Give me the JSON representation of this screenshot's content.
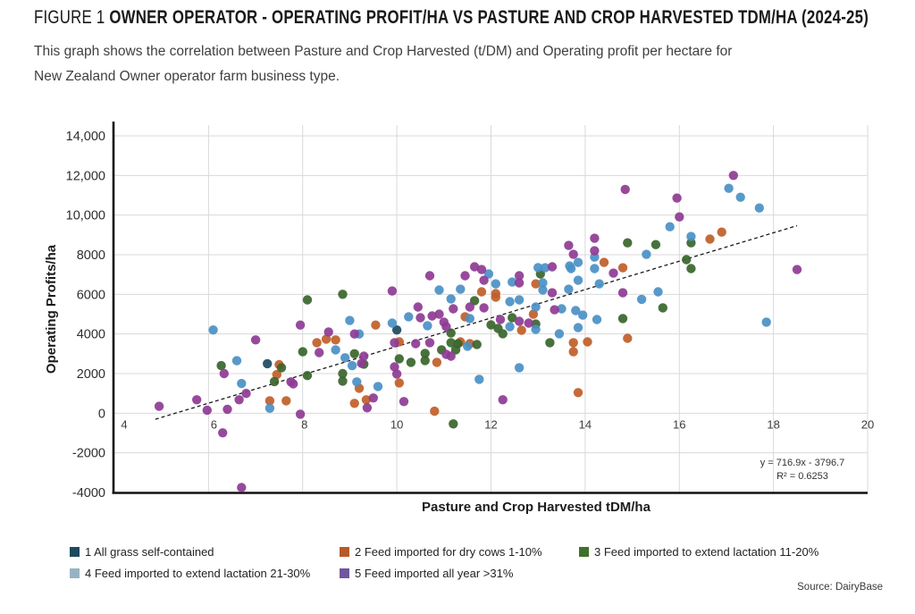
{
  "figure": {
    "title_prefix": "FIGURE 1 ",
    "title_main": "OWNER OPERATOR - OPERATING PROFIT/HA VS PASTURE AND CROP HARVESTED TDM/HA (2024-25)",
    "subtitle_line1": "This graph shows the correlation between Pasture and Crop Harvested (t/DM) and Operating profit per hectare for",
    "subtitle_line2": "New Zealand Owner operator farm business type.",
    "source": "Source: DairyBase"
  },
  "chart_data": {
    "type": "scatter",
    "title": "Owner Operator - Operating Profit/ha vs Pasture and Crop Harvested tDM/ha (2024-25)",
    "xlabel": "Pasture and Crop Harvested tDM/ha",
    "ylabel": "Operating Profits/ha",
    "xlim": [
      4,
      20
    ],
    "ylim": [
      -4000,
      14000
    ],
    "grid": true,
    "legend_position": "bottom",
    "x_ticks": [
      4,
      6,
      8,
      10,
      12,
      14,
      16,
      18,
      20
    ],
    "y_ticks": [
      -4000,
      -2000,
      0,
      2000,
      4000,
      6000,
      8000,
      10000,
      12000,
      14000
    ],
    "y_tick_labels": [
      "-4000",
      "-2000",
      "0",
      "2000",
      "4000",
      "6000",
      "8000",
      "10,000",
      "12,000",
      "14,000"
    ],
    "trendline": {
      "equation_label": "y = 716.9x - 3796.7",
      "r2_label": "R² = 0.6253",
      "slope": 716.9,
      "intercept": -3796.7,
      "x_start": 4.87,
      "x_end": 18.5,
      "style": "dashed",
      "color": "#1a1a1a"
    },
    "categories": [
      {
        "id": 1,
        "label": "1 All grass self-contained",
        "color": "#1d4a5e",
        "swatch_color": "#1d4a5e"
      },
      {
        "id": 2,
        "label": "2 Feed imported for dry cows 1-10%",
        "color": "#c05e28",
        "swatch_color": "#b65a28"
      },
      {
        "id": 3,
        "label": "3 Feed imported to extend lactation 11-20%",
        "color": "#38652b",
        "swatch_color": "#41702a"
      },
      {
        "id": 4,
        "label": "4 Feed imported to extend lactation 21-30%",
        "color": "#4a90c5",
        "swatch_color": "#97b3c3"
      },
      {
        "id": 5,
        "label": "5 Feed imported all year >31%",
        "color": "#8e3b94",
        "swatch_color": "#6f569f"
      }
    ],
    "points": [
      [
        7.25,
        2500,
        1
      ],
      [
        10.0,
        4200,
        1
      ],
      [
        7.3,
        630,
        2
      ],
      [
        7.45,
        1950,
        2
      ],
      [
        7.5,
        2450,
        2
      ],
      [
        7.65,
        630,
        2
      ],
      [
        8.3,
        3560,
        2
      ],
      [
        8.5,
        3740,
        2
      ],
      [
        8.7,
        3700,
        2
      ],
      [
        9.1,
        500,
        2
      ],
      [
        9.2,
        1260,
        2
      ],
      [
        9.35,
        680,
        2
      ],
      [
        9.55,
        4450,
        2
      ],
      [
        10.05,
        3600,
        2
      ],
      [
        10.05,
        1530,
        2
      ],
      [
        10.8,
        100,
        2
      ],
      [
        10.85,
        2570,
        2
      ],
      [
        11.35,
        3600,
        2
      ],
      [
        11.45,
        4870,
        2
      ],
      [
        11.55,
        3510,
        2
      ],
      [
        11.8,
        6130,
        2
      ],
      [
        12.1,
        5860,
        2
      ],
      [
        12.1,
        6040,
        2
      ],
      [
        12.65,
        4190,
        2
      ],
      [
        12.9,
        5000,
        2
      ],
      [
        12.95,
        6530,
        2
      ],
      [
        13.75,
        3560,
        2
      ],
      [
        13.75,
        3100,
        2
      ],
      [
        13.85,
        1040,
        2
      ],
      [
        14.05,
        3600,
        2
      ],
      [
        14.4,
        7610,
        2
      ],
      [
        14.8,
        7340,
        2
      ],
      [
        14.9,
        3780,
        2
      ],
      [
        16.65,
        8790,
        2
      ],
      [
        16.9,
        9140,
        2
      ],
      [
        6.27,
        2400,
        3
      ],
      [
        7.4,
        1600,
        3
      ],
      [
        7.55,
        2300,
        3
      ],
      [
        8.0,
        3100,
        3
      ],
      [
        8.1,
        1900,
        3
      ],
      [
        8.1,
        5720,
        3
      ],
      [
        8.85,
        2000,
        3
      ],
      [
        8.85,
        1620,
        3
      ],
      [
        8.85,
        6000,
        3
      ],
      [
        9.1,
        3000,
        3
      ],
      [
        9.3,
        2480,
        3
      ],
      [
        10.05,
        2750,
        3
      ],
      [
        10.3,
        2570,
        3
      ],
      [
        10.6,
        2660,
        3
      ],
      [
        10.6,
        3020,
        3
      ],
      [
        10.95,
        3200,
        3
      ],
      [
        11.15,
        4050,
        3
      ],
      [
        11.15,
        3560,
        3
      ],
      [
        11.2,
        -540,
        3
      ],
      [
        11.25,
        3200,
        3
      ],
      [
        11.3,
        3510,
        3
      ],
      [
        11.65,
        5680,
        3
      ],
      [
        11.7,
        3470,
        3
      ],
      [
        12.0,
        4460,
        3
      ],
      [
        12.15,
        4280,
        3
      ],
      [
        12.25,
        4010,
        3
      ],
      [
        12.45,
        4820,
        3
      ],
      [
        12.95,
        4500,
        3
      ],
      [
        13.05,
        7030,
        3
      ],
      [
        13.25,
        3560,
        3
      ],
      [
        14.8,
        4780,
        3
      ],
      [
        14.9,
        8600,
        3
      ],
      [
        15.5,
        8510,
        3
      ],
      [
        15.65,
        5320,
        3
      ],
      [
        16.15,
        7750,
        3
      ],
      [
        16.25,
        8600,
        3
      ],
      [
        16.25,
        7300,
        3
      ],
      [
        6.1,
        4200,
        4
      ],
      [
        6.6,
        2650,
        4
      ],
      [
        6.7,
        1500,
        4
      ],
      [
        7.3,
        250,
        4
      ],
      [
        8.7,
        3200,
        4
      ],
      [
        8.9,
        2800,
        4
      ],
      [
        9.0,
        4680,
        4
      ],
      [
        9.05,
        2400,
        4
      ],
      [
        9.15,
        1580,
        4
      ],
      [
        9.2,
        4000,
        4
      ],
      [
        9.6,
        1350,
        4
      ],
      [
        9.9,
        4550,
        4
      ],
      [
        10.25,
        4870,
        4
      ],
      [
        10.65,
        4420,
        4
      ],
      [
        10.9,
        6220,
        4
      ],
      [
        11.15,
        5770,
        4
      ],
      [
        11.35,
        6260,
        4
      ],
      [
        11.5,
        3380,
        4
      ],
      [
        11.55,
        4780,
        4
      ],
      [
        11.75,
        1710,
        4
      ],
      [
        11.95,
        7030,
        4
      ],
      [
        12.1,
        6530,
        4
      ],
      [
        12.4,
        5630,
        4
      ],
      [
        12.4,
        4370,
        4
      ],
      [
        12.45,
        6620,
        4
      ],
      [
        12.6,
        5720,
        4
      ],
      [
        12.6,
        2300,
        4
      ],
      [
        12.95,
        5360,
        4
      ],
      [
        12.95,
        4230,
        4
      ],
      [
        13.0,
        7350,
        4
      ],
      [
        13.1,
        6580,
        4
      ],
      [
        13.1,
        6220,
        4
      ],
      [
        13.15,
        7340,
        4
      ],
      [
        13.45,
        4010,
        4
      ],
      [
        13.5,
        5270,
        4
      ],
      [
        13.65,
        6260,
        4
      ],
      [
        13.67,
        7430,
        4
      ],
      [
        13.7,
        7300,
        4
      ],
      [
        13.8,
        5180,
        4
      ],
      [
        13.85,
        7610,
        4
      ],
      [
        13.85,
        6710,
        4
      ],
      [
        13.85,
        4320,
        4
      ],
      [
        13.95,
        4950,
        4
      ],
      [
        14.2,
        7880,
        4
      ],
      [
        14.2,
        7300,
        4
      ],
      [
        14.25,
        4730,
        4
      ],
      [
        14.3,
        6530,
        4
      ],
      [
        15.2,
        5750,
        4
      ],
      [
        15.3,
        8020,
        4
      ],
      [
        15.55,
        6130,
        4
      ],
      [
        15.8,
        9410,
        4
      ],
      [
        16.25,
        8920,
        4
      ],
      [
        17.05,
        11350,
        4
      ],
      [
        17.3,
        10900,
        4
      ],
      [
        17.7,
        10360,
        4
      ],
      [
        17.85,
        4600,
        4
      ],
      [
        4.95,
        350,
        5
      ],
      [
        5.75,
        680,
        5
      ],
      [
        5.97,
        150,
        5
      ],
      [
        6.3,
        -990,
        5
      ],
      [
        6.33,
        2000,
        5
      ],
      [
        6.4,
        200,
        5
      ],
      [
        6.65,
        680,
        5
      ],
      [
        6.7,
        -3750,
        5
      ],
      [
        6.8,
        1000,
        5
      ],
      [
        7.0,
        3700,
        5
      ],
      [
        7.75,
        1580,
        5
      ],
      [
        7.8,
        1480,
        5
      ],
      [
        7.95,
        4450,
        5
      ],
      [
        7.95,
        -50,
        5
      ],
      [
        8.35,
        3060,
        5
      ],
      [
        8.55,
        4100,
        5
      ],
      [
        9.1,
        4000,
        5
      ],
      [
        9.25,
        2520,
        5
      ],
      [
        9.3,
        2880,
        5
      ],
      [
        9.37,
        270,
        5
      ],
      [
        9.5,
        770,
        5
      ],
      [
        9.9,
        6170,
        5
      ],
      [
        9.95,
        2340,
        5
      ],
      [
        9.95,
        3560,
        5
      ],
      [
        10.0,
        1980,
        5
      ],
      [
        10.15,
        590,
        5
      ],
      [
        10.4,
        3510,
        5
      ],
      [
        10.45,
        5360,
        5
      ],
      [
        10.5,
        4820,
        5
      ],
      [
        10.7,
        3560,
        5
      ],
      [
        10.7,
        6940,
        5
      ],
      [
        10.75,
        4910,
        5
      ],
      [
        10.9,
        5000,
        5
      ],
      [
        11.0,
        4600,
        5
      ],
      [
        11.05,
        4370,
        5
      ],
      [
        11.05,
        2970,
        5
      ],
      [
        11.15,
        2880,
        5
      ],
      [
        11.2,
        5270,
        5
      ],
      [
        11.45,
        6940,
        5
      ],
      [
        11.55,
        5360,
        5
      ],
      [
        11.65,
        7390,
        5
      ],
      [
        11.8,
        7250,
        5
      ],
      [
        11.85,
        5320,
        5
      ],
      [
        11.85,
        6710,
        5
      ],
      [
        12.2,
        4730,
        5
      ],
      [
        12.25,
        680,
        5
      ],
      [
        12.6,
        4640,
        5
      ],
      [
        12.6,
        6940,
        5
      ],
      [
        12.6,
        6580,
        5
      ],
      [
        12.8,
        4550,
        5
      ],
      [
        13.3,
        7390,
        5
      ],
      [
        13.3,
        6080,
        5
      ],
      [
        13.35,
        5220,
        5
      ],
      [
        13.65,
        8470,
        5
      ],
      [
        13.75,
        8020,
        5
      ],
      [
        14.2,
        8830,
        5
      ],
      [
        14.2,
        8200,
        5
      ],
      [
        14.6,
        7070,
        5
      ],
      [
        14.8,
        6080,
        5
      ],
      [
        14.85,
        11300,
        5
      ],
      [
        15.95,
        10860,
        5
      ],
      [
        16.0,
        9910,
        5
      ],
      [
        17.15,
        12000,
        5
      ],
      [
        18.5,
        7250,
        5
      ]
    ],
    "colors": {
      "grid": "#d9d9d9",
      "axis": "#111111",
      "tick_text": "#2e2e2e"
    }
  }
}
